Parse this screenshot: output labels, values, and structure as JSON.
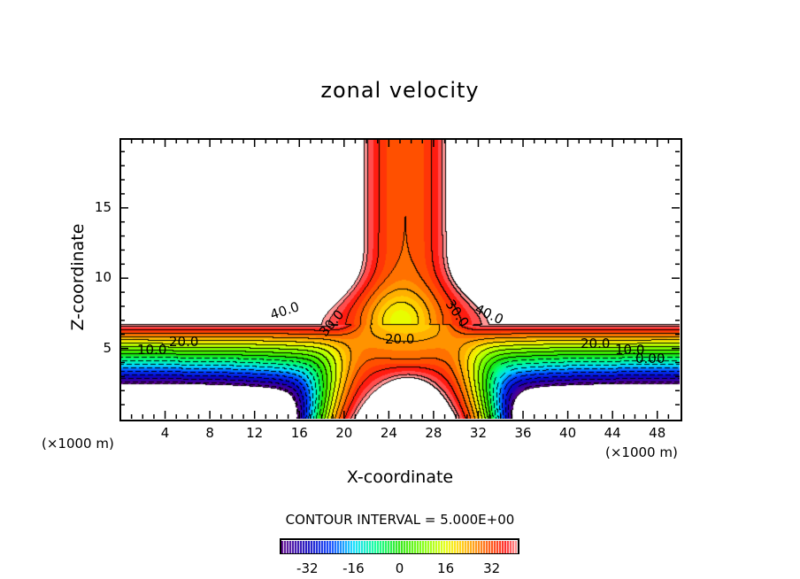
{
  "chart_data": {
    "type": "heatmap",
    "subtype": "filled-contour",
    "title": "zonal velocity",
    "xlabel": "X-coordinate",
    "ylabel": "Z-coordinate",
    "x_unit_label": "(×1000 m)",
    "y_unit_label": "(×1000 m)",
    "xlim": [
      0,
      50
    ],
    "ylim": [
      0,
      19.9
    ],
    "xticks": [
      4,
      8,
      12,
      16,
      20,
      24,
      28,
      32,
      36,
      40,
      44,
      48
    ],
    "yticks": [
      5,
      10,
      15
    ],
    "contour_interval_text": "CONTOUR INTERVAL = 5.000E+00",
    "contour_interval": 5,
    "colorbar": {
      "range": [
        -41,
        41
      ],
      "ticks": [
        -32,
        -16,
        0,
        16,
        32
      ]
    },
    "contour_labels": [
      "40.0",
      "30.0",
      "20.0",
      "10.0",
      "20.0",
      "30.0",
      "40.0",
      "20.0",
      "10.0",
      "0.00"
    ],
    "features": {
      "jet_level_z": 6.7,
      "jet_max": 42,
      "central_column_x": 25.5,
      "central_minimum": {
        "x": 25,
        "z": 7,
        "value": 17
      },
      "lower_min": -42
    }
  }
}
